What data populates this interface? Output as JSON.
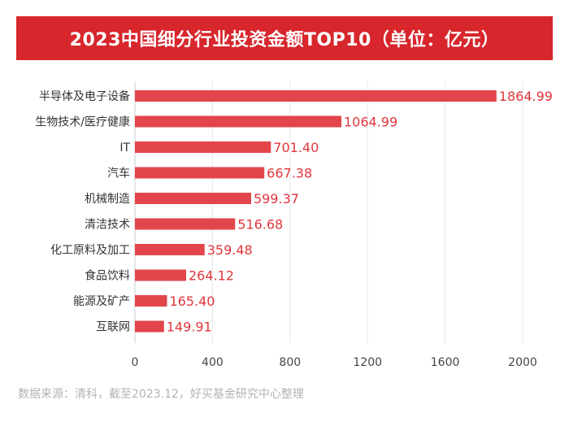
{
  "chart_data": {
    "type": "bar",
    "orientation": "horizontal",
    "title": "2023中国细分行业投资金额TOP10（单位：亿元）",
    "categories": [
      "半导体及电子设备",
      "生物技术/医疗健康",
      "IT",
      "汽车",
      "机械制造",
      "清洁技术",
      "化工原料及加工",
      "食品饮料",
      "能源及矿产",
      "互联网"
    ],
    "values": [
      1864.99,
      1064.99,
      701.4,
      667.38,
      599.37,
      516.68,
      359.48,
      264.12,
      165.4,
      149.91
    ],
    "value_labels": [
      "1864.99",
      "1064.99",
      "701.40",
      "667.38",
      "599.37",
      "516.68",
      "359.48",
      "264.12",
      "165.40",
      "149.91"
    ],
    "x_ticks": [
      "0",
      "400",
      "800",
      "1200",
      "1600",
      "2000"
    ],
    "xlim": [
      0,
      2000
    ],
    "grid": true,
    "xlabel": "",
    "ylabel": ""
  },
  "source": "数据来源：清科，截至2023.12，好买基金研究中心整理",
  "colors": {
    "banner": "#d7262c",
    "bar": "#e2454a",
    "value_label": "#e0363c",
    "grid": "#e6e6e6",
    "axis": "#444444",
    "source_text": "#b3b3b3"
  }
}
